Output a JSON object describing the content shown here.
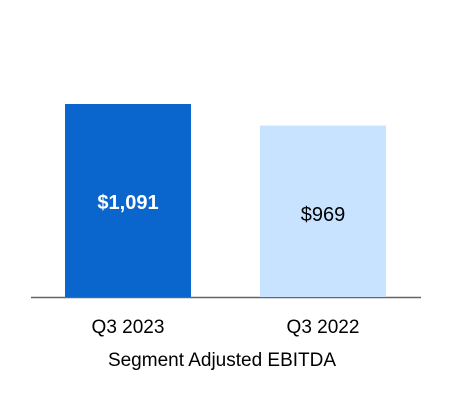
{
  "chart_data": {
    "type": "bar",
    "categories": [
      "Q3 2023",
      "Q3 2022"
    ],
    "values": [
      1091,
      969
    ],
    "value_labels": [
      "$1,091",
      "$969"
    ],
    "title": "",
    "xlabel": "Segment Adjusted EBITDA",
    "ylabel": "",
    "ylim": [
      0,
      1200
    ],
    "grid": false,
    "legend": "none",
    "colors": {
      "bars": [
        "#0A66CC",
        "#C8E3FF"
      ],
      "label_text": [
        "#ffffff",
        "#000000"
      ],
      "baseline": "#666666"
    }
  }
}
